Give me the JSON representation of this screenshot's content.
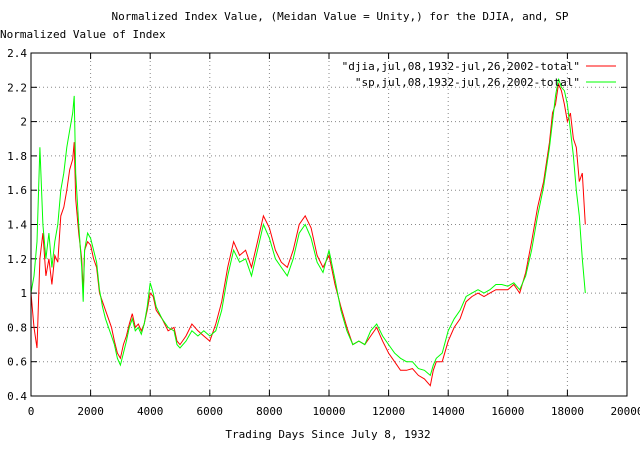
{
  "chart_data": {
    "type": "line",
    "title": "Normalized Index Value, (Meidan Value = Unity,) for the DJIA, and, SP",
    "ylabel": "Normalized Value of Index",
    "xlabel": "Trading Days Since July 8, 1932",
    "xlim": [
      0,
      20000
    ],
    "ylim": [
      0.4,
      2.4
    ],
    "x_ticks": [
      0,
      2000,
      4000,
      6000,
      8000,
      10000,
      12000,
      14000,
      16000,
      18000,
      20000
    ],
    "y_ticks": [
      0.4,
      0.6,
      0.8,
      1,
      1.2,
      1.4,
      1.6,
      1.8,
      2,
      2.2,
      2.4
    ],
    "grid": true,
    "legend_position": "top-right",
    "series": [
      {
        "name": "\"djia,jul,08,1932-jul,26,2002-total\"",
        "color": "#ff0000",
        "points": [
          [
            0,
            1.0
          ],
          [
            100,
            0.8
          ],
          [
            200,
            0.68
          ],
          [
            300,
            1.2
          ],
          [
            400,
            1.35
          ],
          [
            500,
            1.1
          ],
          [
            600,
            1.2
          ],
          [
            700,
            1.05
          ],
          [
            800,
            1.22
          ],
          [
            900,
            1.18
          ],
          [
            1000,
            1.45
          ],
          [
            1100,
            1.5
          ],
          [
            1200,
            1.6
          ],
          [
            1300,
            1.72
          ],
          [
            1400,
            1.78
          ],
          [
            1450,
            1.88
          ],
          [
            1500,
            1.55
          ],
          [
            1600,
            1.35
          ],
          [
            1700,
            1.2
          ],
          [
            1750,
            1.0
          ],
          [
            1800,
            1.25
          ],
          [
            1900,
            1.3
          ],
          [
            2000,
            1.28
          ],
          [
            2100,
            1.2
          ],
          [
            2200,
            1.15
          ],
          [
            2300,
            1.0
          ],
          [
            2400,
            0.95
          ],
          [
            2500,
            0.9
          ],
          [
            2600,
            0.85
          ],
          [
            2700,
            0.8
          ],
          [
            2800,
            0.72
          ],
          [
            2900,
            0.65
          ],
          [
            3000,
            0.62
          ],
          [
            3100,
            0.7
          ],
          [
            3200,
            0.75
          ],
          [
            3300,
            0.82
          ],
          [
            3400,
            0.88
          ],
          [
            3500,
            0.8
          ],
          [
            3600,
            0.82
          ],
          [
            3700,
            0.78
          ],
          [
            3800,
            0.82
          ],
          [
            3900,
            0.9
          ],
          [
            4000,
            1.0
          ],
          [
            4100,
            0.98
          ],
          [
            4200,
            0.9
          ],
          [
            4400,
            0.85
          ],
          [
            4600,
            0.78
          ],
          [
            4800,
            0.8
          ],
          [
            4900,
            0.72
          ],
          [
            5000,
            0.7
          ],
          [
            5200,
            0.75
          ],
          [
            5400,
            0.82
          ],
          [
            5600,
            0.78
          ],
          [
            5800,
            0.75
          ],
          [
            6000,
            0.72
          ],
          [
            6200,
            0.82
          ],
          [
            6400,
            0.95
          ],
          [
            6600,
            1.15
          ],
          [
            6800,
            1.3
          ],
          [
            7000,
            1.22
          ],
          [
            7200,
            1.25
          ],
          [
            7400,
            1.15
          ],
          [
            7600,
            1.3
          ],
          [
            7800,
            1.45
          ],
          [
            8000,
            1.38
          ],
          [
            8200,
            1.25
          ],
          [
            8400,
            1.18
          ],
          [
            8600,
            1.15
          ],
          [
            8800,
            1.25
          ],
          [
            9000,
            1.4
          ],
          [
            9200,
            1.45
          ],
          [
            9400,
            1.38
          ],
          [
            9600,
            1.22
          ],
          [
            9800,
            1.15
          ],
          [
            10000,
            1.22
          ],
          [
            10200,
            1.05
          ],
          [
            10400,
            0.92
          ],
          [
            10600,
            0.8
          ],
          [
            10800,
            0.7
          ],
          [
            11000,
            0.72
          ],
          [
            11200,
            0.7
          ],
          [
            11400,
            0.75
          ],
          [
            11600,
            0.8
          ],
          [
            11800,
            0.72
          ],
          [
            12000,
            0.65
          ],
          [
            12200,
            0.6
          ],
          [
            12400,
            0.55
          ],
          [
            12600,
            0.55
          ],
          [
            12800,
            0.56
          ],
          [
            13000,
            0.52
          ],
          [
            13200,
            0.5
          ],
          [
            13400,
            0.46
          ],
          [
            13500,
            0.55
          ],
          [
            13600,
            0.6
          ],
          [
            13800,
            0.6
          ],
          [
            14000,
            0.72
          ],
          [
            14200,
            0.8
          ],
          [
            14400,
            0.85
          ],
          [
            14600,
            0.95
          ],
          [
            14800,
            0.98
          ],
          [
            15000,
            1.0
          ],
          [
            15200,
            0.98
          ],
          [
            15400,
            1.0
          ],
          [
            15600,
            1.02
          ],
          [
            15800,
            1.02
          ],
          [
            16000,
            1.02
          ],
          [
            16200,
            1.05
          ],
          [
            16400,
            1.0
          ],
          [
            16600,
            1.12
          ],
          [
            16800,
            1.3
          ],
          [
            17000,
            1.5
          ],
          [
            17200,
            1.65
          ],
          [
            17400,
            1.88
          ],
          [
            17500,
            2.05
          ],
          [
            17600,
            2.1
          ],
          [
            17700,
            2.22
          ],
          [
            17800,
            2.18
          ],
          [
            17900,
            2.1
          ],
          [
            18000,
            2.0
          ],
          [
            18100,
            2.05
          ],
          [
            18200,
            1.9
          ],
          [
            18300,
            1.85
          ],
          [
            18400,
            1.65
          ],
          [
            18500,
            1.7
          ],
          [
            18600,
            1.4
          ]
        ]
      },
      {
        "name": "\"sp,jul,08,1932-jul,26,2002-total\"",
        "color": "#00ff00",
        "points": [
          [
            0,
            1.0
          ],
          [
            100,
            1.1
          ],
          [
            200,
            1.3
          ],
          [
            300,
            1.85
          ],
          [
            400,
            1.4
          ],
          [
            500,
            1.2
          ],
          [
            600,
            1.35
          ],
          [
            700,
            1.15
          ],
          [
            800,
            1.3
          ],
          [
            900,
            1.4
          ],
          [
            1000,
            1.6
          ],
          [
            1100,
            1.7
          ],
          [
            1200,
            1.85
          ],
          [
            1300,
            1.95
          ],
          [
            1400,
            2.05
          ],
          [
            1450,
            2.15
          ],
          [
            1500,
            1.7
          ],
          [
            1600,
            1.4
          ],
          [
            1700,
            1.15
          ],
          [
            1750,
            0.95
          ],
          [
            1800,
            1.25
          ],
          [
            1900,
            1.35
          ],
          [
            2000,
            1.32
          ],
          [
            2100,
            1.25
          ],
          [
            2200,
            1.18
          ],
          [
            2300,
            1.02
          ],
          [
            2400,
            0.92
          ],
          [
            2500,
            0.85
          ],
          [
            2600,
            0.8
          ],
          [
            2700,
            0.75
          ],
          [
            2800,
            0.7
          ],
          [
            2900,
            0.62
          ],
          [
            3000,
            0.58
          ],
          [
            3100,
            0.65
          ],
          [
            3200,
            0.72
          ],
          [
            3300,
            0.8
          ],
          [
            3400,
            0.85
          ],
          [
            3500,
            0.78
          ],
          [
            3600,
            0.8
          ],
          [
            3700,
            0.76
          ],
          [
            3800,
            0.82
          ],
          [
            3900,
            0.92
          ],
          [
            4000,
            1.06
          ],
          [
            4100,
            1.0
          ],
          [
            4200,
            0.92
          ],
          [
            4400,
            0.85
          ],
          [
            4600,
            0.8
          ],
          [
            4800,
            0.78
          ],
          [
            4900,
            0.7
          ],
          [
            5000,
            0.68
          ],
          [
            5200,
            0.72
          ],
          [
            5400,
            0.78
          ],
          [
            5600,
            0.75
          ],
          [
            5800,
            0.78
          ],
          [
            6000,
            0.75
          ],
          [
            6200,
            0.78
          ],
          [
            6400,
            0.9
          ],
          [
            6600,
            1.1
          ],
          [
            6800,
            1.25
          ],
          [
            7000,
            1.18
          ],
          [
            7200,
            1.2
          ],
          [
            7400,
            1.1
          ],
          [
            7600,
            1.25
          ],
          [
            7800,
            1.4
          ],
          [
            8000,
            1.32
          ],
          [
            8200,
            1.2
          ],
          [
            8400,
            1.15
          ],
          [
            8600,
            1.1
          ],
          [
            8800,
            1.2
          ],
          [
            9000,
            1.35
          ],
          [
            9200,
            1.4
          ],
          [
            9400,
            1.32
          ],
          [
            9600,
            1.18
          ],
          [
            9800,
            1.12
          ],
          [
            10000,
            1.25
          ],
          [
            10200,
            1.08
          ],
          [
            10400,
            0.9
          ],
          [
            10600,
            0.78
          ],
          [
            10800,
            0.7
          ],
          [
            11000,
            0.72
          ],
          [
            11200,
            0.7
          ],
          [
            11400,
            0.78
          ],
          [
            11600,
            0.82
          ],
          [
            11800,
            0.75
          ],
          [
            12000,
            0.7
          ],
          [
            12200,
            0.65
          ],
          [
            12400,
            0.62
          ],
          [
            12600,
            0.6
          ],
          [
            12800,
            0.6
          ],
          [
            13000,
            0.56
          ],
          [
            13200,
            0.55
          ],
          [
            13400,
            0.52
          ],
          [
            13500,
            0.58
          ],
          [
            13600,
            0.62
          ],
          [
            13800,
            0.65
          ],
          [
            14000,
            0.78
          ],
          [
            14200,
            0.85
          ],
          [
            14400,
            0.9
          ],
          [
            14600,
            0.98
          ],
          [
            14800,
            1.0
          ],
          [
            15000,
            1.02
          ],
          [
            15200,
            1.0
          ],
          [
            15400,
            1.02
          ],
          [
            15600,
            1.05
          ],
          [
            15800,
            1.05
          ],
          [
            16000,
            1.04
          ],
          [
            16200,
            1.06
          ],
          [
            16400,
            1.02
          ],
          [
            16600,
            1.1
          ],
          [
            16800,
            1.25
          ],
          [
            17000,
            1.45
          ],
          [
            17200,
            1.62
          ],
          [
            17400,
            1.85
          ],
          [
            17500,
            2.0
          ],
          [
            17600,
            2.15
          ],
          [
            17700,
            2.25
          ],
          [
            17800,
            2.2
          ],
          [
            17900,
            2.18
          ],
          [
            18000,
            2.1
          ],
          [
            18100,
            1.95
          ],
          [
            18200,
            1.8
          ],
          [
            18300,
            1.6
          ],
          [
            18400,
            1.45
          ],
          [
            18500,
            1.2
          ],
          [
            18600,
            1.0
          ]
        ]
      }
    ]
  }
}
